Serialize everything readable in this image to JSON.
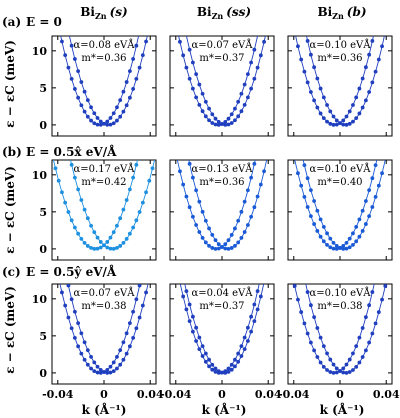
{
  "columns": [
    {
      "base": "Bi",
      "sub": "Zn",
      "variant": "(s)"
    },
    {
      "base": "Bi",
      "sub": "Zn",
      "variant": "(ss)"
    },
    {
      "base": "Bi",
      "sub": "Zn",
      "variant": "(b)"
    }
  ],
  "rows": [
    {
      "panel_label": "(a)",
      "field_label": "E = 0"
    },
    {
      "panel_label": "(b)",
      "field_label": "E = 0.5x̂  eV/Å"
    },
    {
      "panel_label": "(c)",
      "field_label": "E = 0.5ŷ  eV/Å"
    }
  ],
  "axes": {
    "ylabel": "ε − εC (meV)",
    "xlabel": "k (Å⁻¹)",
    "xlim": [
      -0.045,
      0.045
    ],
    "ylim": [
      -1.5,
      12
    ],
    "xticks": [
      "-0.04",
      "0",
      "0.04"
    ],
    "yticks": [
      "0",
      "5",
      "10"
    ]
  },
  "colors": {
    "dark_blue": "#1f3fbf",
    "light_blue": "#1e90e0",
    "mid_blue": "#1a5ad6"
  },
  "chart_data": [
    {
      "type": "line",
      "row": 0,
      "col": 0,
      "alpha_label": "α=0.08 eVÅ",
      "mass_label": "m*=0.36",
      "alpha": 0.08,
      "mass": 0.36,
      "shift": 0.0,
      "color_key": "dark_blue"
    },
    {
      "type": "line",
      "row": 0,
      "col": 1,
      "alpha_label": "α=0.07 eVÅ",
      "mass_label": "m*=0.37",
      "alpha": 0.07,
      "mass": 0.37,
      "shift": 0.0,
      "color_key": "dark_blue"
    },
    {
      "type": "line",
      "row": 0,
      "col": 2,
      "alpha_label": "α=0.10 eVÅ",
      "mass_label": "m*=0.36",
      "alpha": 0.1,
      "mass": 0.36,
      "shift": 0.0,
      "color_key": "dark_blue"
    },
    {
      "type": "line",
      "row": 1,
      "col": 0,
      "alpha_label": "α=0.17 eVÅ",
      "mass_label": "m*=0.42",
      "alpha": 0.17,
      "mass": 0.42,
      "shift": 0.5,
      "color_key": "light_blue"
    },
    {
      "type": "line",
      "row": 1,
      "col": 1,
      "alpha_label": "α=0.13 eVÅ",
      "mass_label": "m*=0.36",
      "alpha": 0.13,
      "mass": 0.36,
      "shift": 0.3,
      "color_key": "mid_blue"
    },
    {
      "type": "line",
      "row": 1,
      "col": 2,
      "alpha_label": "α=0.10 eVÅ",
      "mass_label": "m*=0.40",
      "alpha": 0.1,
      "mass": 0.4,
      "shift": 0.4,
      "color_key": "mid_blue"
    },
    {
      "type": "line",
      "row": 2,
      "col": 0,
      "alpha_label": "α=0.07 eVÅ",
      "mass_label": "m*=0.38",
      "alpha": 0.07,
      "mass": 0.38,
      "shift": 0.0,
      "color_key": "dark_blue"
    },
    {
      "type": "line",
      "row": 2,
      "col": 1,
      "alpha_label": "α=0.04 eVÅ",
      "mass_label": "m*=0.37",
      "alpha": 0.04,
      "mass": 0.37,
      "shift": 0.0,
      "color_key": "dark_blue"
    },
    {
      "type": "line",
      "row": 2,
      "col": 2,
      "alpha_label": "α=0.10 eVÅ",
      "mass_label": "m*=0.38",
      "alpha": 0.1,
      "mass": 0.38,
      "shift": 0.0,
      "color_key": "dark_blue"
    }
  ]
}
